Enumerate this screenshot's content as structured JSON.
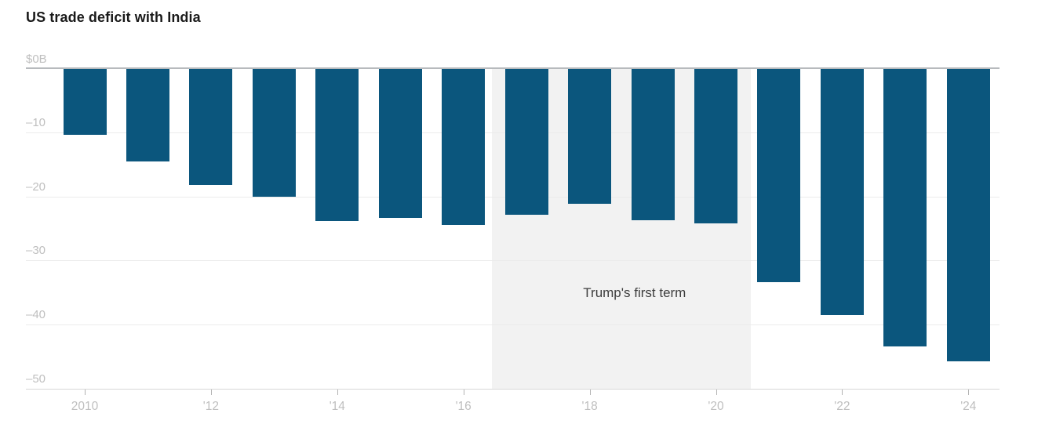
{
  "title": "US trade deficit with India",
  "chart_data": {
    "type": "bar",
    "title": "US trade deficit with India",
    "unit": "billions of US dollars",
    "categories": [
      2010,
      2011,
      2012,
      2013,
      2014,
      2015,
      2016,
      2017,
      2018,
      2019,
      2020,
      2021,
      2022,
      2023,
      2024
    ],
    "values": [
      -10.3,
      -14.5,
      -18.2,
      -20.0,
      -23.8,
      -23.4,
      -24.4,
      -22.9,
      -21.2,
      -23.7,
      -24.2,
      -33.4,
      -38.5,
      -43.5,
      -45.8
    ],
    "ylim": [
      -50,
      0
    ],
    "xlabel": "",
    "ylabel": "",
    "grid": "horizontal",
    "legend_position": "none",
    "ytick_labels": [
      "$0B",
      "–10",
      "–20",
      "–30",
      "–40",
      "–50"
    ],
    "ytick_values": [
      0,
      -10,
      -20,
      -30,
      -40,
      -50
    ],
    "xtick_labels": [
      "2010",
      "'12",
      "'14",
      "'16",
      "'18",
      "'20",
      "'22",
      "'24"
    ],
    "xtick_values": [
      2010,
      2012,
      2014,
      2016,
      2018,
      2020,
      2022,
      2024
    ],
    "annotation": {
      "label": "Trump's first term",
      "span_years": [
        2016.45,
        2020.55
      ]
    },
    "colors": {
      "bar": "#0b567d",
      "band": "#f2f2f2",
      "zero_line": "#b7babd",
      "gridline": "#ebebeb",
      "axis_line": "#d8d8d8",
      "tick_mark": "#b3b3b3",
      "axis_label": "#bfbfbf",
      "annotation_text": "#3d3d3d",
      "title_text": "#1a1a1a"
    }
  }
}
